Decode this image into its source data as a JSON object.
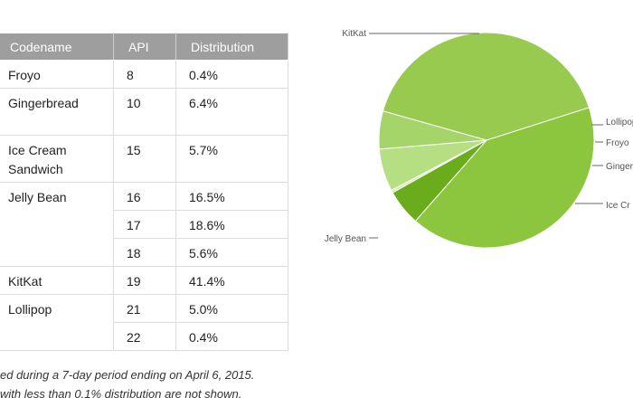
{
  "table": {
    "headers": {
      "codename": "Codename",
      "api": "API",
      "distribution": "Distribution"
    },
    "rows": [
      {
        "codename": "Froyo",
        "entries": [
          {
            "api": "8",
            "distribution": "0.4%"
          }
        ]
      },
      {
        "codename": "Gingerbread",
        "entries": [
          {
            "api": "10",
            "distribution": "6.4%"
          }
        ]
      },
      {
        "codename": "Ice Cream\nSandwich",
        "entries": [
          {
            "api": "15",
            "distribution": "5.7%"
          }
        ]
      },
      {
        "codename": "Jelly Bean",
        "entries": [
          {
            "api": "16",
            "distribution": "16.5%"
          },
          {
            "api": "17",
            "distribution": "18.6%"
          },
          {
            "api": "18",
            "distribution": "5.6%"
          }
        ]
      },
      {
        "codename": "KitKat",
        "entries": [
          {
            "api": "19",
            "distribution": "41.4%"
          }
        ]
      },
      {
        "codename": "Lollipop",
        "entries": [
          {
            "api": "21",
            "distribution": "5.0%"
          },
          {
            "api": "22",
            "distribution": "0.4%"
          }
        ]
      }
    ]
  },
  "footnote": {
    "line1": "ed during a 7-day period ending on April 6, 2015.",
    "line2": "with less than 0.1% distribution are not shown."
  },
  "chart_data": {
    "type": "pie",
    "title": "",
    "slices": [
      {
        "label": "KitKat",
        "value": 41.4,
        "color": "#8cc63f"
      },
      {
        "label": "Lollipop",
        "value": 5.4,
        "color": "#6aac1c"
      },
      {
        "label": "Froyo",
        "value": 0.4,
        "color": "#d6ebb4"
      },
      {
        "label": "Ginger",
        "value": 6.4,
        "color": "#b6de82"
      },
      {
        "label": "Ice Cr",
        "value": 5.7,
        "color": "#a4d46a"
      },
      {
        "label": "Jelly Bean",
        "value": 40.7,
        "color": "#97ca4f"
      }
    ]
  }
}
